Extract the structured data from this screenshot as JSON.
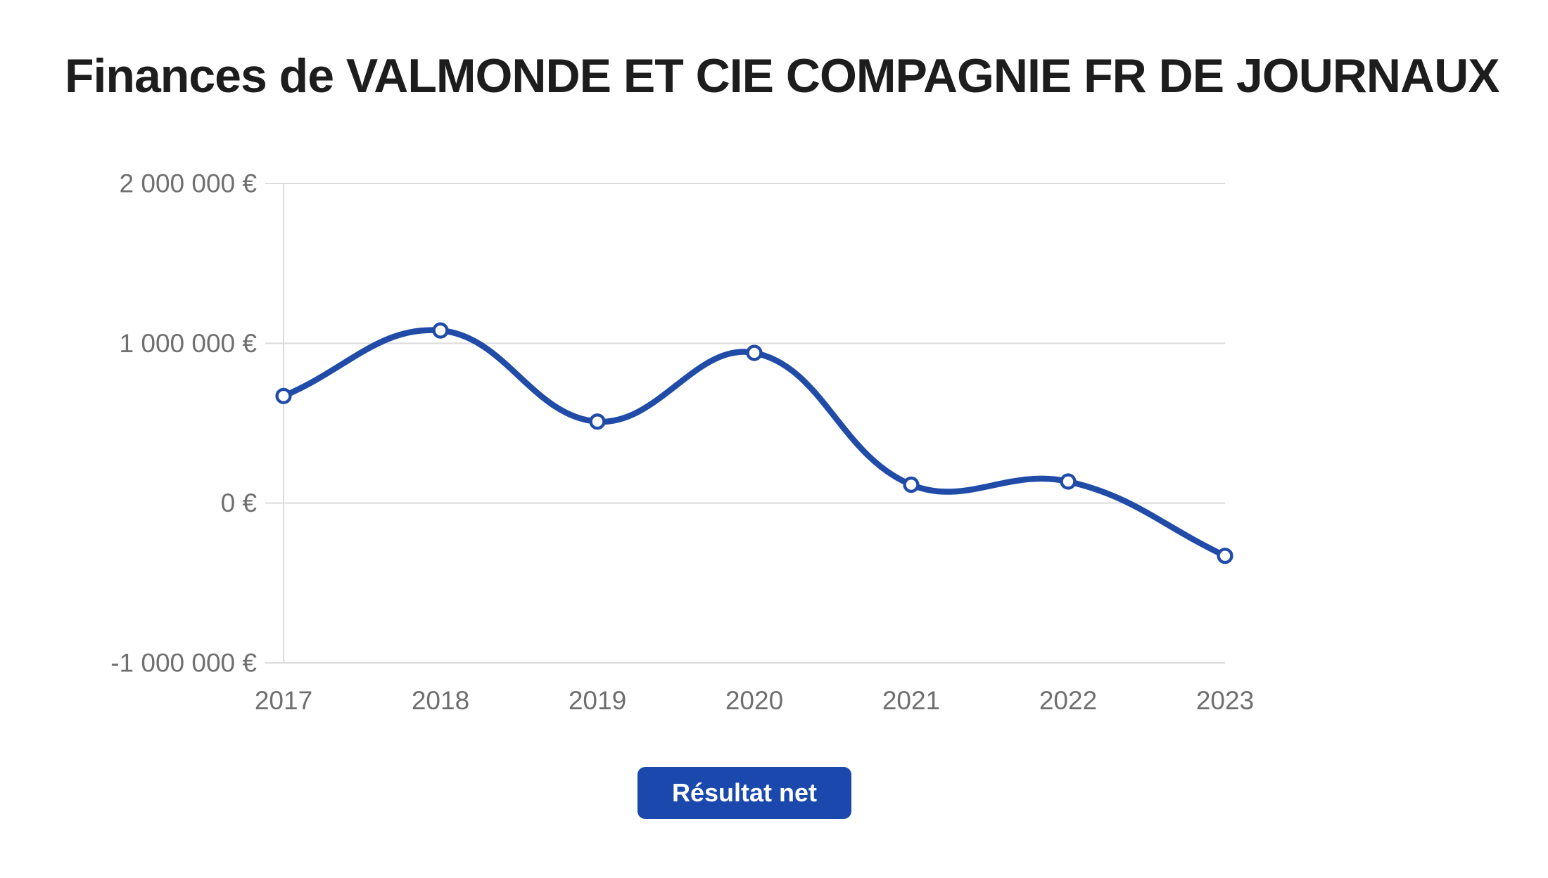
{
  "header": {
    "title": "Finances de VALMONDE ET CIE COMPAGNIE FR DE JOURNAUX"
  },
  "legend": {
    "button_label": "Résultat net"
  },
  "colors": {
    "line": "#204CA8",
    "marker_fill": "#ffffff",
    "button_background": "#1a48ad",
    "button_text": "#ffffff",
    "grid": "#dcdcdc",
    "axis_label": "#6f6f6f",
    "title_text": "#1d1d1d",
    "background": "#ffffff"
  },
  "chart_data": {
    "type": "line",
    "title": "Finances de VALMONDE ET CIE COMPAGNIE FR DE JOURNAUX",
    "categories": [
      "2017",
      "2018",
      "2019",
      "2020",
      "2021",
      "2022",
      "2023"
    ],
    "series": [
      {
        "name": "Résultat net",
        "values": [
          670000,
          1080000,
          510000,
          940000,
          115000,
          135000,
          -330000
        ]
      }
    ],
    "xlabel": "",
    "ylabel": "",
    "ylim": [
      -1000000,
      2000000
    ],
    "y_ticks": [
      {
        "value": 2000000,
        "label": "2 000 000 €"
      },
      {
        "value": 1000000,
        "label": "1 000 000 €"
      },
      {
        "value": 0,
        "label": "0 €"
      },
      {
        "value": -1000000,
        "label": "-1 000 000 €"
      }
    ],
    "grid": true,
    "smooth": true,
    "line_tension": 0.4,
    "legend_position": "bottom",
    "currency": "EUR"
  }
}
